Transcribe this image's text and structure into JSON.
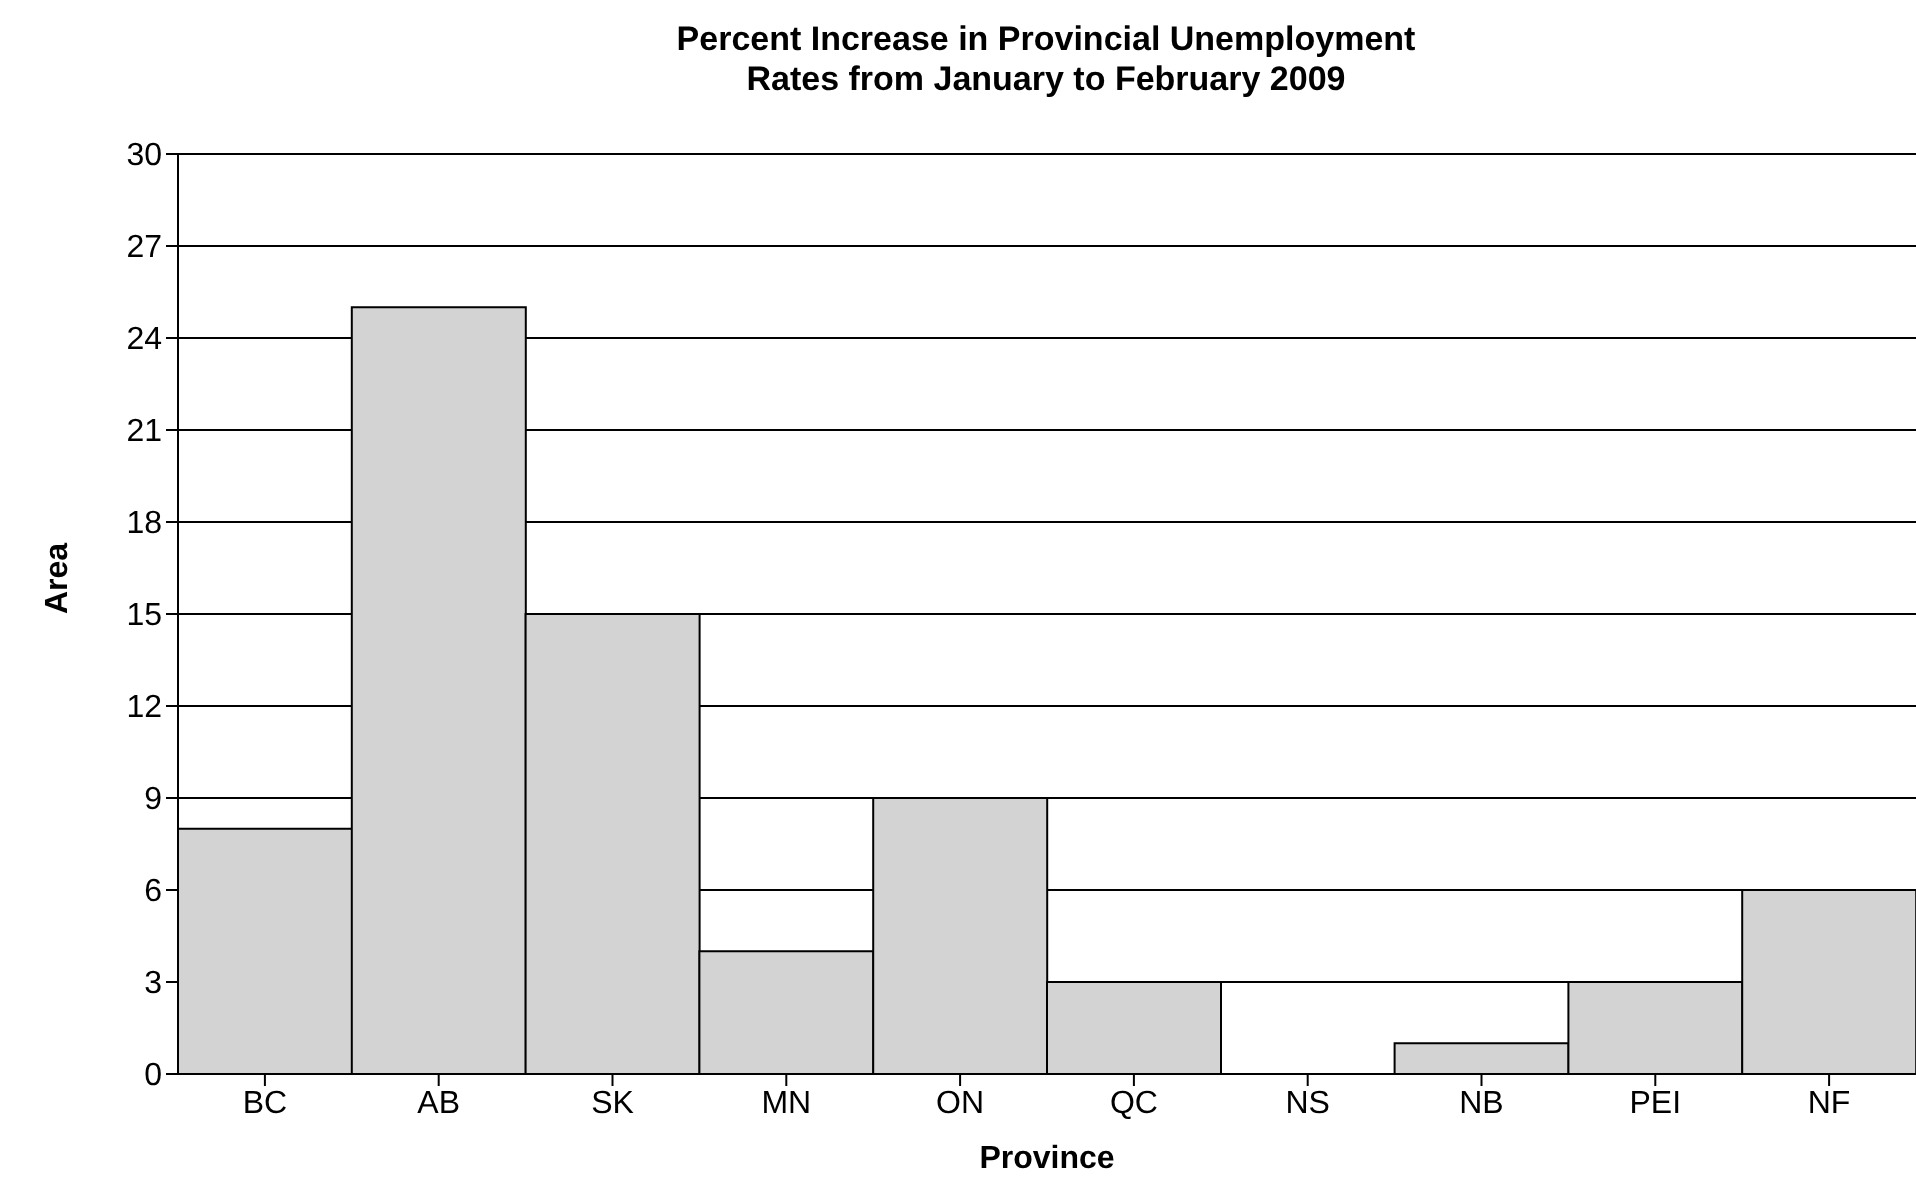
{
  "chart_data": {
    "type": "bar",
    "title": "Percent Increase in Provincial Unemployment\nRates from January to February 2009",
    "xlabel": "Province",
    "ylabel": "Area",
    "categories": [
      "BC",
      "AB",
      "SK",
      "MN",
      "ON",
      "QC",
      "NS",
      "NB",
      "PEI",
      "NF"
    ],
    "values": [
      8,
      25,
      15,
      4,
      9,
      3,
      0,
      1,
      3,
      6
    ],
    "color": "#d3d3d3",
    "ylim": [
      0,
      30
    ],
    "yticks": [
      0,
      3,
      6,
      9,
      12,
      15,
      18,
      21,
      24,
      27,
      30
    ],
    "grid": "y"
  }
}
